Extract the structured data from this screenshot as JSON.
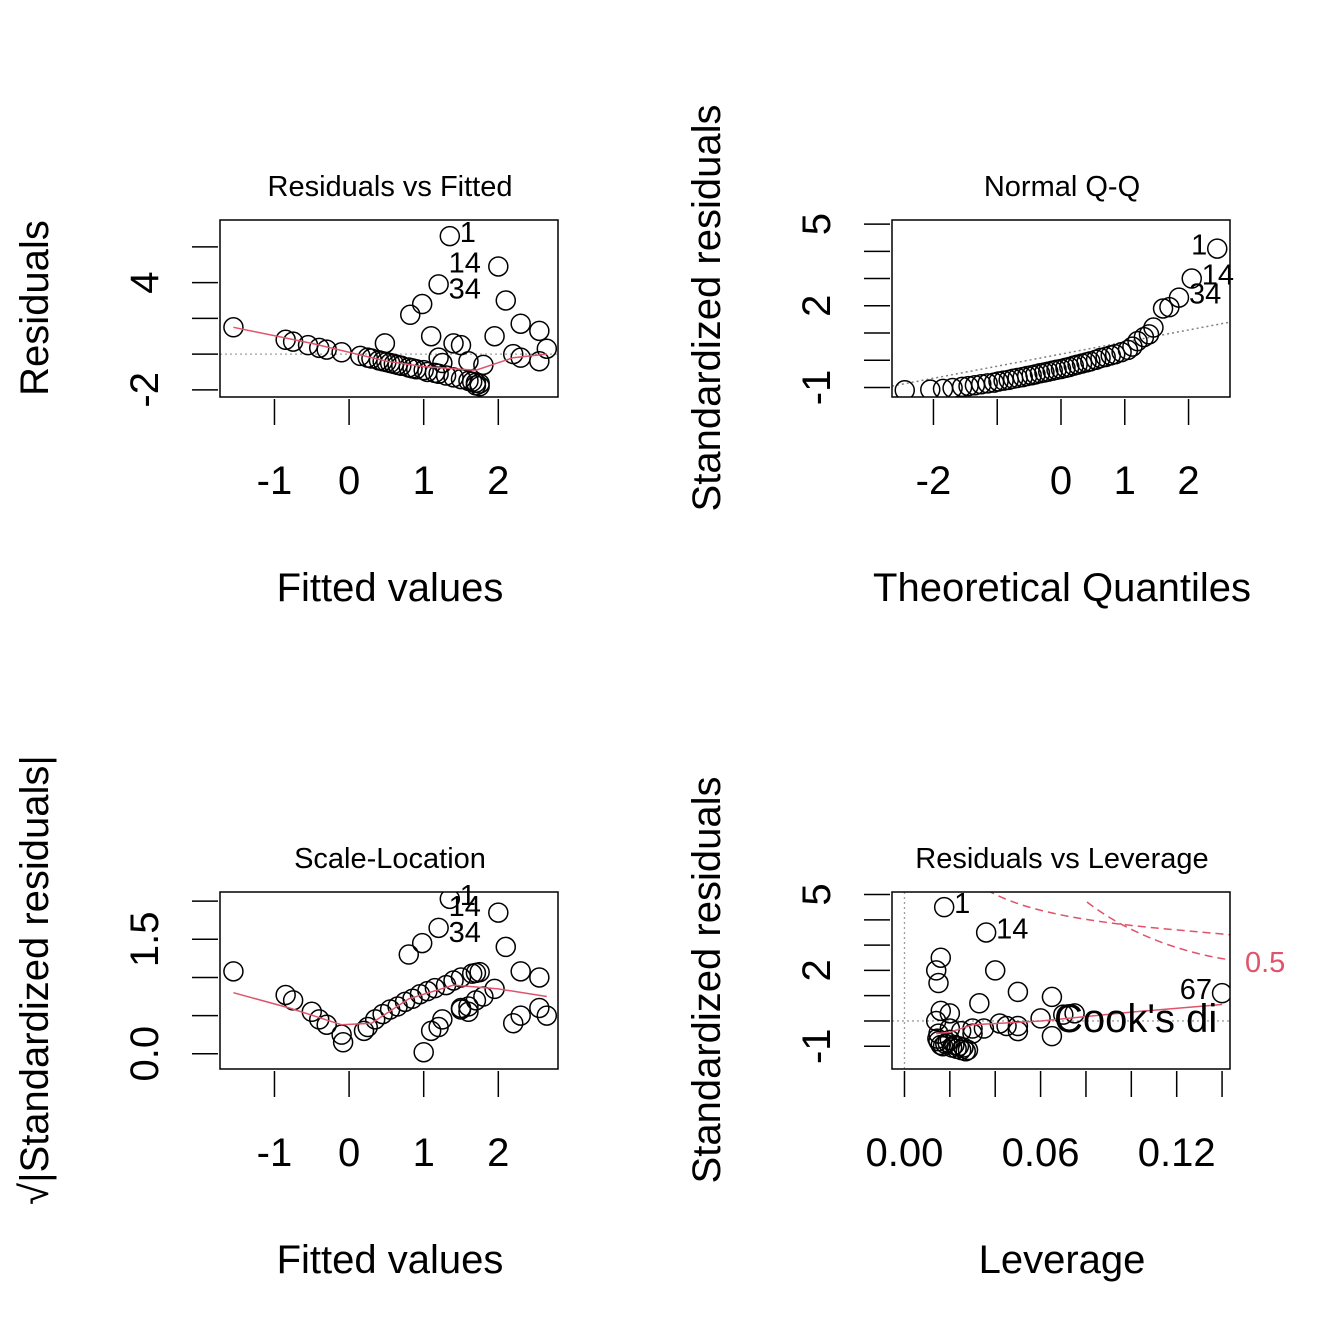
{
  "chart_data": [
    {
      "type": "scatter",
      "title": "Residuals vs Fitted",
      "xlabel": "Fitted values",
      "ylabel": "Residuals",
      "xlim": [
        -1.73,
        2.8
      ],
      "ylim": [
        -2.4,
        7.5
      ],
      "xticks": [
        -1,
        0,
        1,
        2
      ],
      "yticks": [
        -2,
        0,
        2,
        4,
        6
      ],
      "ytick_labels": [
        "-2",
        "",
        "",
        "4",
        ""
      ],
      "hline": 0,
      "points": [
        [
          -1.55,
          1.5
        ],
        [
          -0.85,
          0.8
        ],
        [
          -0.75,
          0.7
        ],
        [
          -0.55,
          0.5
        ],
        [
          -0.4,
          0.35
        ],
        [
          -0.3,
          0.25
        ],
        [
          -0.1,
          0.1
        ],
        [
          0.15,
          -0.1
        ],
        [
          0.25,
          -0.2
        ],
        [
          0.3,
          -0.25
        ],
        [
          0.4,
          -0.35
        ],
        [
          0.45,
          -0.4
        ],
        [
          0.5,
          -0.45
        ],
        [
          0.55,
          -0.5
        ],
        [
          0.6,
          -0.55
        ],
        [
          0.65,
          -0.6
        ],
        [
          0.7,
          -0.65
        ],
        [
          0.8,
          -0.75
        ],
        [
          0.85,
          -0.8
        ],
        [
          0.9,
          -0.85
        ],
        [
          1.0,
          -0.9
        ],
        [
          1.05,
          -1.0
        ],
        [
          1.15,
          -1.05
        ],
        [
          1.2,
          -1.1
        ],
        [
          1.3,
          -1.2
        ],
        [
          1.4,
          -1.3
        ],
        [
          1.5,
          -1.4
        ],
        [
          1.6,
          -1.5
        ],
        [
          1.65,
          -1.55
        ],
        [
          1.7,
          -1.6
        ],
        [
          1.75,
          -1.65
        ],
        [
          1.7,
          -1.75
        ],
        [
          1.75,
          -1.8
        ],
        [
          0.48,
          0.6
        ],
        [
          0.82,
          2.2
        ],
        [
          0.98,
          2.8
        ],
        [
          1.1,
          1.0
        ],
        [
          1.2,
          -0.2
        ],
        [
          1.25,
          -0.5
        ],
        [
          1.4,
          0.6
        ],
        [
          1.5,
          0.5
        ],
        [
          1.6,
          -0.4
        ],
        [
          1.8,
          -0.6
        ],
        [
          1.95,
          1.0
        ],
        [
          2.1,
          3.0
        ],
        [
          2.3,
          1.7
        ],
        [
          2.55,
          1.3
        ],
        [
          2.65,
          0.3
        ],
        [
          2.55,
          -0.4
        ],
        [
          2.3,
          -0.2
        ],
        [
          2.2,
          0.0
        ],
        [
          1.2,
          3.9
        ],
        [
          1.35,
          6.6
        ],
        [
          2.0,
          4.9
        ]
      ],
      "smooth": [
        [
          -1.55,
          1.5
        ],
        [
          -0.5,
          0.6
        ],
        [
          0.5,
          -0.4
        ],
        [
          1.0,
          -0.7
        ],
        [
          1.7,
          -0.9
        ],
        [
          2.2,
          -0.2
        ],
        [
          2.65,
          0.0
        ]
      ],
      "annotations": [
        {
          "label": "1",
          "x": 1.35,
          "y": 6.6,
          "side": "right",
          "dy": 6
        },
        {
          "label": "14",
          "x": 1.2,
          "y": 3.9,
          "side": "right",
          "dy": -12
        },
        {
          "label": "34",
          "x": 1.2,
          "y": 3.9,
          "side": "right",
          "dy": 14
        }
      ]
    },
    {
      "type": "scatter",
      "title": "Normal Q-Q",
      "xlabel": "Theoretical Quantiles",
      "ylabel": "Standardized residuals",
      "xlim": [
        -2.65,
        2.65
      ],
      "ylim": [
        -1.35,
        5.15
      ],
      "xticks": [
        -2,
        -1,
        0,
        1,
        2
      ],
      "xtick_labels": [
        "-2",
        "",
        "0",
        "1",
        "2"
      ],
      "yticks": [
        -1,
        0,
        1,
        2,
        3,
        4,
        5
      ],
      "ytick_labels": [
        "-1",
        "",
        "",
        "2",
        "",
        "",
        "5"
      ],
      "qqline": [
        [
          -2.65,
          -0.95
        ],
        [
          2.65,
          1.4
        ]
      ],
      "points": [
        [
          -2.45,
          -1.1
        ],
        [
          -2.05,
          -1.08
        ],
        [
          -1.85,
          -1.05
        ],
        [
          -1.7,
          -1.02
        ],
        [
          -1.55,
          -0.98
        ],
        [
          -1.45,
          -0.95
        ],
        [
          -1.35,
          -0.92
        ],
        [
          -1.25,
          -0.88
        ],
        [
          -1.15,
          -0.85
        ],
        [
          -1.05,
          -0.82
        ],
        [
          -0.98,
          -0.78
        ],
        [
          -0.9,
          -0.75
        ],
        [
          -0.82,
          -0.72
        ],
        [
          -0.75,
          -0.68
        ],
        [
          -0.68,
          -0.65
        ],
        [
          -0.6,
          -0.62
        ],
        [
          -0.53,
          -0.58
        ],
        [
          -0.46,
          -0.55
        ],
        [
          -0.4,
          -0.52
        ],
        [
          -0.33,
          -0.48
        ],
        [
          -0.26,
          -0.45
        ],
        [
          -0.2,
          -0.42
        ],
        [
          -0.13,
          -0.38
        ],
        [
          -0.07,
          -0.35
        ],
        [
          0.0,
          -0.32
        ],
        [
          0.07,
          -0.28
        ],
        [
          0.13,
          -0.25
        ],
        [
          0.2,
          -0.2
        ],
        [
          0.26,
          -0.16
        ],
        [
          0.33,
          -0.12
        ],
        [
          0.4,
          -0.08
        ],
        [
          0.46,
          -0.04
        ],
        [
          0.55,
          0.02
        ],
        [
          0.62,
          0.08
        ],
        [
          0.7,
          0.12
        ],
        [
          0.78,
          0.18
        ],
        [
          0.85,
          0.22
        ],
        [
          0.95,
          0.3
        ],
        [
          1.05,
          0.38
        ],
        [
          1.12,
          0.5
        ],
        [
          1.2,
          0.7
        ],
        [
          1.3,
          0.85
        ],
        [
          1.38,
          0.95
        ],
        [
          1.45,
          1.2
        ],
        [
          1.6,
          1.9
        ],
        [
          1.7,
          1.95
        ],
        [
          1.85,
          2.3
        ],
        [
          2.05,
          3.0
        ],
        [
          2.45,
          4.1
        ]
      ],
      "annotations": [
        {
          "label": "1",
          "x": 2.45,
          "y": 4.1,
          "side": "left",
          "dy": 6
        },
        {
          "label": "14",
          "x": 2.05,
          "y": 3.0,
          "side": "right",
          "dy": 6
        },
        {
          "label": "34",
          "x": 1.85,
          "y": 2.3,
          "side": "right",
          "dy": 6
        }
      ]
    },
    {
      "type": "scatter",
      "title": "Scale-Location",
      "xlabel": "Fitted values",
      "ylabel": "√|Standardized residuals|",
      "xlim": [
        -1.73,
        2.8
      ],
      "ylim": [
        -0.2,
        2.12
      ],
      "xticks": [
        -1,
        0,
        1,
        2
      ],
      "yticks": [
        0.0,
        0.5,
        1.0,
        1.5,
        2.0
      ],
      "ytick_labels": [
        "0.0",
        "",
        "",
        "1.5",
        ""
      ],
      "points": [
        [
          -1.55,
          1.08
        ],
        [
          -0.85,
          0.77
        ],
        [
          -0.75,
          0.7
        ],
        [
          -0.5,
          0.55
        ],
        [
          -0.4,
          0.45
        ],
        [
          -0.3,
          0.38
        ],
        [
          -0.1,
          0.25
        ],
        [
          -0.08,
          0.15
        ],
        [
          0.2,
          0.3
        ],
        [
          0.25,
          0.35
        ],
        [
          0.35,
          0.45
        ],
        [
          0.45,
          0.52
        ],
        [
          0.55,
          0.58
        ],
        [
          0.65,
          0.62
        ],
        [
          0.75,
          0.68
        ],
        [
          0.85,
          0.72
        ],
        [
          0.95,
          0.78
        ],
        [
          1.05,
          0.82
        ],
        [
          1.15,
          0.86
        ],
        [
          1.3,
          0.9
        ],
        [
          1.4,
          0.96
        ],
        [
          1.5,
          1.0
        ],
        [
          1.65,
          1.05
        ],
        [
          1.7,
          1.06
        ],
        [
          1.75,
          1.07
        ],
        [
          0.8,
          1.3
        ],
        [
          0.98,
          1.45
        ],
        [
          1.2,
          1.65
        ],
        [
          1.35,
          2.03
        ],
        [
          2.0,
          1.85
        ],
        [
          2.1,
          1.4
        ],
        [
          2.3,
          1.08
        ],
        [
          2.55,
          1.0
        ],
        [
          2.55,
          0.6
        ],
        [
          2.65,
          0.5
        ],
        [
          2.3,
          0.5
        ],
        [
          2.2,
          0.4
        ],
        [
          1.95,
          0.85
        ],
        [
          1.8,
          0.75
        ],
        [
          1.6,
          0.62
        ],
        [
          1.5,
          0.58
        ],
        [
          1.25,
          0.45
        ],
        [
          1.2,
          0.35
        ],
        [
          1.1,
          0.3
        ],
        [
          1.0,
          0.02
        ],
        [
          1.5,
          0.6
        ],
        [
          1.6,
          0.55
        ],
        [
          1.7,
          0.7
        ]
      ],
      "smooth": [
        [
          -1.55,
          0.8
        ],
        [
          -0.8,
          0.6
        ],
        [
          -0.1,
          0.38
        ],
        [
          0.3,
          0.4
        ],
        [
          0.8,
          0.72
        ],
        [
          1.4,
          0.9
        ],
        [
          2.0,
          0.85
        ],
        [
          2.65,
          0.75
        ]
      ],
      "annotations": [
        {
          "label": "1",
          "x": 1.35,
          "y": 2.03,
          "side": "right",
          "dy": 6
        },
        {
          "label": "14",
          "x": 1.2,
          "y": 1.65,
          "side": "right",
          "dy": -12
        },
        {
          "label": "34",
          "x": 1.2,
          "y": 1.65,
          "side": "right",
          "dy": 14
        }
      ]
    },
    {
      "type": "scatter",
      "title": "Residuals vs Leverage",
      "xlabel": "Leverage",
      "ylabel": "Standardized residuals",
      "xlim": [
        -0.0055,
        0.1435
      ],
      "ylim": [
        -1.9,
        5.1
      ],
      "xticks": [
        0.0,
        0.02,
        0.04,
        0.06,
        0.08,
        0.1,
        0.12,
        0.14
      ],
      "xtick_labels": [
        "0.00",
        "",
        "",
        "0.06",
        "",
        "",
        "0.12",
        ""
      ],
      "yticks": [
        -1,
        0,
        1,
        2,
        3,
        4,
        5
      ],
      "ytick_labels": [
        "-1",
        "",
        "",
        "2",
        "",
        "",
        "5"
      ],
      "hline": 0,
      "vline": 0,
      "points": [
        [
          0.0145,
          -0.7
        ],
        [
          0.015,
          -0.8
        ],
        [
          0.016,
          -0.95
        ],
        [
          0.017,
          -1.0
        ],
        [
          0.018,
          -0.9
        ],
        [
          0.019,
          -0.85
        ],
        [
          0.02,
          -0.75
        ],
        [
          0.021,
          -1.05
        ],
        [
          0.022,
          -0.95
        ],
        [
          0.023,
          -1.1
        ],
        [
          0.024,
          -1.0
        ],
        [
          0.025,
          -1.15
        ],
        [
          0.026,
          -1.05
        ],
        [
          0.027,
          -1.2
        ],
        [
          0.028,
          -1.15
        ],
        [
          0.015,
          -0.5
        ],
        [
          0.02,
          -0.3
        ],
        [
          0.025,
          -0.4
        ],
        [
          0.03,
          -0.5
        ],
        [
          0.035,
          -0.3
        ],
        [
          0.042,
          -0.1
        ],
        [
          0.05,
          -0.2
        ],
        [
          0.06,
          0.1
        ],
        [
          0.07,
          0.25
        ],
        [
          0.075,
          0.3
        ],
        [
          0.016,
          0.4
        ],
        [
          0.014,
          0.0
        ],
        [
          0.02,
          0.3
        ],
        [
          0.015,
          1.5
        ],
        [
          0.014,
          2.0
        ],
        [
          0.016,
          2.5
        ],
        [
          0.0175,
          4.5
        ],
        [
          0.036,
          3.5
        ],
        [
          0.04,
          2.0
        ],
        [
          0.05,
          1.15
        ],
        [
          0.065,
          0.95
        ],
        [
          0.033,
          0.7
        ],
        [
          0.03,
          -0.3
        ],
        [
          0.045,
          -0.2
        ],
        [
          0.05,
          -0.4
        ],
        [
          0.065,
          -0.6
        ],
        [
          0.14,
          1.1
        ]
      ],
      "smooth": [
        [
          0.014,
          -0.5
        ],
        [
          0.02,
          -0.45
        ],
        [
          0.03,
          -0.15
        ],
        [
          0.06,
          0.0
        ],
        [
          0.1,
          0.35
        ],
        [
          0.14,
          0.65
        ]
      ],
      "cook_labels": [
        {
          "label": "0.5",
          "y": 1.95,
          "color": "#DF536B"
        }
      ],
      "legend_text": "Cook's di",
      "annotations": [
        {
          "label": "1",
          "x": 0.0175,
          "y": 4.5,
          "side": "right",
          "dy": 6
        },
        {
          "label": "14",
          "x": 0.036,
          "y": 3.5,
          "side": "right",
          "dy": 6
        },
        {
          "label": "67",
          "x": 0.14,
          "y": 1.1,
          "side": "left",
          "dy": 6
        }
      ]
    }
  ]
}
